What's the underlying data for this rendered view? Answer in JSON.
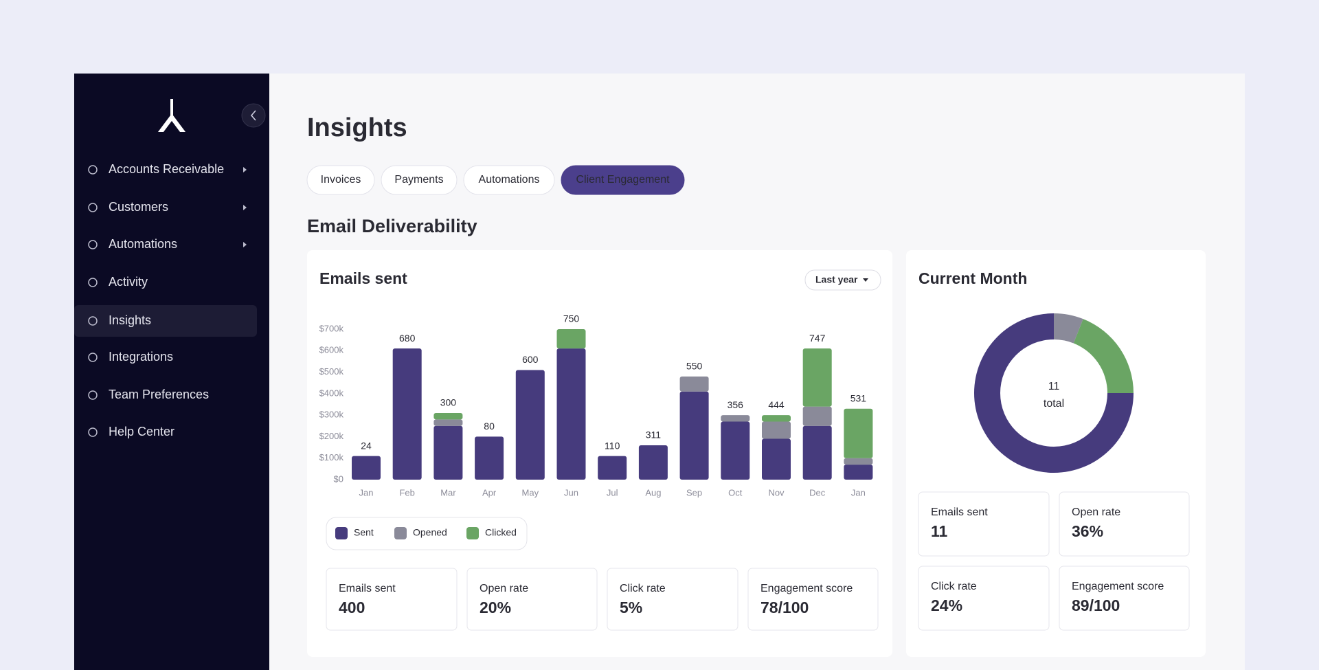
{
  "sidebar": {
    "nav": [
      "Accounts Receivable",
      "Customers",
      "Automations",
      "Activity",
      "Insights",
      "Integrations",
      "Team Preferences",
      "Help Center"
    ]
  },
  "header": {
    "title": "Insights"
  },
  "tabs": [
    "Invoices",
    "Payments",
    "Automations",
    "Client Engagement"
  ],
  "section_title": "Email Deliverability",
  "chart_data": [
    {
      "type": "bar",
      "stacked": true,
      "title": "Emails sent",
      "dropdown": "Last year",
      "categories": [
        "Jan",
        "Feb",
        "Mar",
        "Apr",
        "May",
        "Jun",
        "Jul",
        "Aug",
        "Sep",
        "Oct",
        "Nov",
        "Dec",
        "Jan"
      ],
      "series": [
        {
          "name": "Sent",
          "color": "#463b7d",
          "values": [
            110000,
            610000,
            250000,
            200000,
            510000,
            610000,
            110000,
            160000,
            410000,
            270000,
            190000,
            250000,
            70000
          ]
        },
        {
          "name": "Opened",
          "color": "#8a8a99",
          "values": [
            0,
            0,
            30000,
            0,
            0,
            0,
            0,
            0,
            70000,
            30000,
            80000,
            90000,
            30000
          ]
        },
        {
          "name": "Clicked",
          "color": "#6aa564",
          "values": [
            0,
            0,
            30000,
            0,
            0,
            90000,
            0,
            0,
            0,
            0,
            30000,
            270000,
            230000
          ]
        }
      ],
      "bar_labels": [
        "24",
        "680",
        "300",
        "80",
        "600",
        "750",
        "110",
        "311",
        "550",
        "356",
        "444",
        "747",
        "531"
      ],
      "ylim": [
        0,
        700000
      ],
      "yticks": [
        {
          "value": 0,
          "label": "$0"
        },
        {
          "value": 100000,
          "label": "$100k"
        },
        {
          "value": 200000,
          "label": "$200k"
        },
        {
          "value": 300000,
          "label": "$300k"
        },
        {
          "value": 400000,
          "label": "$400k"
        },
        {
          "value": 500000,
          "label": "$500k"
        },
        {
          "value": 600000,
          "label": "$600k"
        },
        {
          "value": 700000,
          "label": "$700k"
        }
      ],
      "stats": [
        {
          "label": "Emails sent",
          "value": "400"
        },
        {
          "label": "Open rate",
          "value": "20%"
        },
        {
          "label": "Click rate",
          "value": "5%"
        },
        {
          "label": "Engagement score",
          "value": "78/100"
        }
      ]
    },
    {
      "type": "pie",
      "donut": true,
      "title": "Current Month",
      "center_value": "11",
      "center_label": "total",
      "values": [
        6,
        19,
        75
      ],
      "colors": [
        "#8a8a99",
        "#6aa564",
        "#463b7d"
      ],
      "stats": [
        {
          "label": "Emails sent",
          "value": "11"
        },
        {
          "label": "Open rate",
          "value": "36%"
        },
        {
          "label": "Click rate",
          "value": "24%"
        },
        {
          "label": "Engagement score",
          "value": "89/100"
        }
      ]
    }
  ]
}
